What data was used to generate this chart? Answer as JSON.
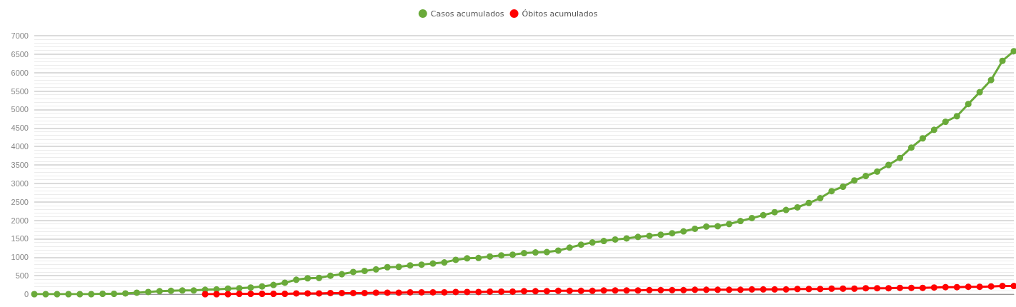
{
  "chart_data": {
    "type": "line",
    "categories": [
      null,
      null,
      null,
      null,
      null,
      null,
      null,
      null,
      null,
      null,
      null,
      null,
      null,
      null,
      null,
      null,
      null,
      null,
      null,
      null,
      null,
      null,
      null,
      null,
      null,
      null,
      null,
      null,
      null,
      null,
      null,
      null,
      null,
      null,
      null,
      null,
      null,
      null,
      null,
      null,
      null,
      null,
      null,
      null,
      null,
      null,
      null,
      null,
      null,
      null,
      null,
      null,
      null,
      null,
      null,
      null,
      null,
      null,
      null,
      null,
      null,
      null,
      null,
      null,
      null,
      null,
      null,
      null,
      null,
      null,
      null,
      null,
      null,
      null,
      null,
      null,
      null,
      null,
      null,
      null,
      null,
      null,
      null,
      null,
      null,
      null,
      null
    ],
    "series": [
      {
        "name": "Casos acumulados",
        "color": "#6aaa3a",
        "values": [
          0,
          0,
          0,
          0,
          0,
          0,
          10,
          10,
          20,
          40,
          60,
          80,
          90,
          100,
          100,
          120,
          130,
          150,
          160,
          180,
          210,
          250,
          310,
          390,
          430,
          440,
          500,
          540,
          600,
          630,
          670,
          730,
          740,
          780,
          800,
          830,
          860,
          930,
          970,
          980,
          1020,
          1050,
          1070,
          1110,
          1130,
          1140,
          1180,
          1260,
          1340,
          1400,
          1440,
          1480,
          1510,
          1550,
          1580,
          1610,
          1650,
          1700,
          1770,
          1830,
          1840,
          1900,
          1980,
          2060,
          2140,
          2220,
          2280,
          2350,
          2470,
          2600,
          2790,
          2910,
          3080,
          3200,
          3320,
          3500,
          3690,
          3970,
          4220,
          4450,
          4670,
          4820,
          5150,
          5470,
          5800,
          6320,
          6580
        ]
      },
      {
        "name": "Óbitos acumulados",
        "color": "#ff0000",
        "values": [
          null,
          null,
          null,
          null,
          null,
          null,
          null,
          null,
          null,
          null,
          null,
          null,
          null,
          null,
          null,
          0,
          0,
          0,
          10,
          10,
          10,
          10,
          10,
          20,
          20,
          20,
          30,
          30,
          30,
          30,
          40,
          40,
          40,
          50,
          50,
          50,
          50,
          60,
          60,
          60,
          70,
          70,
          70,
          80,
          80,
          80,
          90,
          90,
          90,
          90,
          100,
          100,
          100,
          100,
          110,
          110,
          110,
          110,
          120,
          120,
          120,
          120,
          120,
          130,
          130,
          130,
          130,
          140,
          140,
          140,
          150,
          150,
          150,
          160,
          160,
          160,
          170,
          170,
          170,
          180,
          190,
          190,
          200,
          200,
          210,
          220,
          220
        ]
      }
    ],
    "ylim": [
      0,
      7000
    ],
    "yticks": [
      0,
      500,
      1000,
      1500,
      2000,
      2500,
      3000,
      3500,
      4000,
      4500,
      5000,
      5500,
      6000,
      6500,
      7000
    ],
    "grid": "y",
    "legend": "top",
    "marker": "circle",
    "line_style": "solid"
  }
}
